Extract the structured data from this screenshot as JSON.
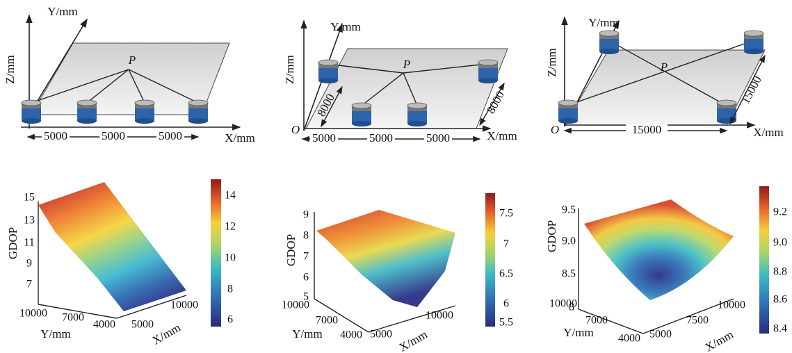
{
  "top": [
    {
      "z_axis": "Z/mm",
      "y_axis": "Y/mm",
      "x_axis": "X/mm",
      "point": "P",
      "spacings": [
        "5000",
        "5000",
        "5000"
      ]
    },
    {
      "z_axis": "Z/mm",
      "y_axis": "Y/mm",
      "x_axis": "X/mm",
      "point": "P",
      "origin": "O",
      "spacings": [
        "5000",
        "5000",
        "5000"
      ],
      "depths": [
        "8000",
        "8000"
      ]
    },
    {
      "z_axis": "Z/mm",
      "y_axis": "Y/mm",
      "x_axis": "X/mm",
      "point": "P",
      "origin": "O",
      "spacings": [
        "15000",
        "15000"
      ]
    }
  ],
  "bottom": [
    {
      "z_label": "GDOP",
      "y_label": "Y/mm",
      "x_label": "X/mm",
      "z_ticks": [
        "15",
        "13",
        "11",
        "9",
        "7"
      ],
      "y_ticks": [
        "10000",
        "7000",
        "4000"
      ],
      "x_ticks": [
        "5000",
        "10000"
      ],
      "colorbar_ticks": [
        "14",
        "12",
        "10",
        "8",
        "6"
      ]
    },
    {
      "z_label": "GDOP",
      "y_label": "Y/mm",
      "x_label": "X/mm",
      "z_ticks": [
        "9",
        "8",
        "7",
        "6",
        "5"
      ],
      "y_ticks": [
        "10000",
        "7000",
        "4000"
      ],
      "x_ticks": [
        "5000",
        "10000"
      ],
      "colorbar_ticks": [
        "7.5",
        "7",
        "6.5",
        "6",
        "5.5"
      ]
    },
    {
      "z_label": "GDOP",
      "y_label": "Y/mm",
      "x_label": "X/mm",
      "z_ticks": [
        "9.5",
        "9.0",
        "8.5",
        "8"
      ],
      "y_ticks": [
        "10000",
        "7000",
        "4000"
      ],
      "x_ticks": [
        "5000",
        "7500",
        "10000"
      ],
      "colorbar_ticks": [
        "9.2",
        "9.0",
        "8.8",
        "8.6",
        "8.4"
      ]
    }
  ]
}
